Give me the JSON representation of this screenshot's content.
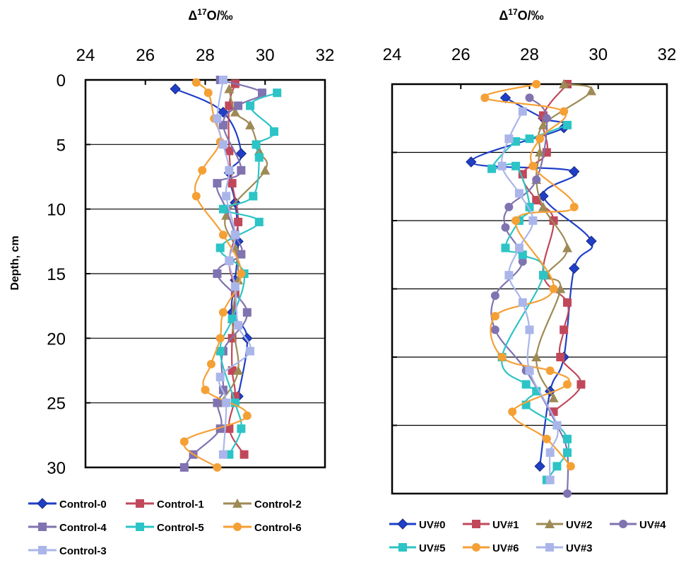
{
  "chart_data": [
    {
      "type": "line",
      "title": "Δ17O/‰",
      "title_sup": "17",
      "xlabel": "Δ17O/‰",
      "ylabel": "Depth, cm",
      "xlim": [
        24,
        32
      ],
      "ylim": [
        0,
        30
      ],
      "xticks": [
        "24",
        "26",
        "28",
        "30",
        "32"
      ],
      "yticks": [
        "0",
        "5",
        "10",
        "15",
        "20",
        "25",
        "30"
      ],
      "ytick_values": [
        0,
        5,
        10,
        15,
        20,
        25,
        30
      ],
      "gridlines_y": [
        5,
        10,
        15,
        20,
        25
      ],
      "legend_position": "bottom",
      "series": [
        {
          "name": "Control-0",
          "color": "#1f3fc8",
          "marker": "diamond",
          "x": [
            27.0,
            28.6,
            29.2,
            28.8,
            29.0,
            29.1,
            29.0,
            28.9,
            29.4,
            29.1
          ],
          "y": [
            0.7,
            2.5,
            5.7,
            7.2,
            9.5,
            12.5,
            15.5,
            18.0,
            20.0,
            24.5
          ]
        },
        {
          "name": "Control-1",
          "color": "#c0485a",
          "marker": "square",
          "x": [
            29.0,
            28.8,
            28.8,
            28.9,
            29.1,
            28.8,
            29.0,
            28.9,
            28.9,
            29.0,
            28.8,
            29.3
          ],
          "y": [
            0.3,
            2.0,
            5.5,
            8.0,
            11.0,
            14.0,
            16.5,
            20.0,
            22.5,
            24.5,
            27.0,
            29.0
          ]
        },
        {
          "name": "Control-2",
          "color": "#9e8a55",
          "marker": "triangle",
          "x": [
            28.8,
            29.0,
            29.5,
            29.8,
            30.0,
            28.7,
            29.0,
            29.1,
            28.9,
            29.1,
            28.5
          ],
          "y": [
            0.7,
            2.5,
            3.5,
            5.5,
            7.0,
            10.5,
            13.0,
            15.5,
            18.5,
            22.5,
            25.0
          ]
        },
        {
          "name": "Control-4",
          "color": "#8073b0",
          "marker": "square",
          "x": [
            28.5,
            29.9,
            29.1,
            28.6,
            29.2,
            28.4,
            28.7,
            29.0,
            29.2,
            28.4,
            29.4,
            28.6,
            28.6,
            28.4,
            28.5,
            27.6,
            27.3
          ],
          "y": [
            0.0,
            1.0,
            2.0,
            3.5,
            7.0,
            8.0,
            10.0,
            12.0,
            13.5,
            15.0,
            18.0,
            21.0,
            24.0,
            25.0,
            27.0,
            29.0,
            30.0
          ]
        },
        {
          "name": "Control-5",
          "color": "#2cc4c6",
          "marker": "square",
          "x": [
            30.4,
            29.5,
            30.3,
            29.7,
            29.8,
            29.6,
            28.6,
            29.8,
            28.5,
            29.3,
            28.9,
            28.5,
            29.0,
            29.2,
            28.8
          ],
          "y": [
            1.0,
            2.0,
            4.0,
            5.0,
            6.0,
            9.0,
            10.0,
            11.0,
            13.0,
            15.0,
            18.5,
            21.0,
            25.0,
            27.0,
            29.0
          ]
        },
        {
          "name": "Control-6",
          "color": "#f5a035",
          "marker": "circle",
          "x": [
            27.7,
            28.1,
            28.3,
            28.5,
            27.9,
            27.7,
            28.6,
            29.2,
            28.6,
            28.5,
            28.2,
            28.0,
            29.4,
            27.3,
            28.4
          ],
          "y": [
            0.2,
            1.0,
            3.0,
            4.8,
            7.0,
            9.0,
            12.0,
            15.0,
            18.0,
            20.0,
            22.0,
            24.0,
            26.0,
            28.0,
            30.0
          ]
        },
        {
          "name": "Control-3",
          "color": "#aab6ea",
          "marker": "square",
          "x": [
            28.6,
            28.4,
            28.6,
            28.8,
            28.7,
            29.0,
            28.8,
            29.0,
            29.1,
            29.5,
            28.5,
            28.7,
            28.6
          ],
          "y": [
            0.0,
            3.0,
            5.0,
            7.0,
            9.0,
            12.0,
            14.0,
            16.0,
            19.0,
            21.0,
            23.0,
            25.0,
            29.0
          ]
        }
      ]
    },
    {
      "type": "line",
      "title": "Δ17O/‰",
      "title_sup": "17",
      "xlabel": "Δ17O/‰",
      "ylabel": "",
      "xlim": [
        24,
        32
      ],
      "ylim": [
        0,
        30
      ],
      "xticks": [
        "24",
        "26",
        "28",
        "30",
        "32"
      ],
      "gridlines_y": [
        5,
        10,
        15,
        20,
        25
      ],
      "legend_position": "bottom",
      "series": [
        {
          "name": "UV#0",
          "color": "#1f3fc8",
          "marker": "diamond",
          "x": [
            27.3,
            28.4,
            29.0,
            26.3,
            29.3,
            28.4,
            29.8,
            29.3,
            29.0,
            28.6,
            28.3
          ],
          "y": [
            1.0,
            2.5,
            3.2,
            5.7,
            6.4,
            8.2,
            11.5,
            13.5,
            20.0,
            22.5,
            28.0
          ]
        },
        {
          "name": "UV#1",
          "color": "#c0485a",
          "marker": "square",
          "x": [
            29.1,
            28.4,
            28.5,
            27.8,
            28.2,
            28.7,
            28.4,
            29.1,
            29.0,
            28.9,
            29.5,
            28.7
          ],
          "y": [
            0.0,
            2.3,
            5.0,
            6.6,
            8.5,
            10.0,
            14.0,
            16.0,
            18.0,
            20.0,
            22.0,
            24.0
          ]
        },
        {
          "name": "UV#2",
          "color": "#9e8a55",
          "marker": "triangle",
          "x": [
            29.0,
            29.8,
            28.4,
            28.3,
            28.2,
            28.4,
            29.1,
            28.5,
            28.9,
            28.2,
            28.7
          ],
          "y": [
            0.0,
            0.5,
            3.0,
            5.0,
            7.0,
            9.0,
            12.0,
            14.0,
            15.0,
            20.0,
            23.0
          ]
        },
        {
          "name": "UV#4",
          "color": "#8073b0",
          "marker": "circle",
          "x": [
            28.0,
            28.5,
            28.2,
            27.4,
            27.3,
            27.8,
            27.0,
            27.0,
            27.9,
            28.8,
            29.1,
            29.1
          ],
          "y": [
            1.0,
            2.5,
            7.0,
            9.0,
            10.5,
            13.0,
            15.5,
            18.0,
            21.0,
            25.0,
            27.0,
            30.0
          ]
        },
        {
          "name": "UV#5",
          "color": "#2cc4c6",
          "marker": "square",
          "x": [
            29.1,
            28.0,
            27.6,
            26.9,
            27.6,
            28.0,
            27.7,
            27.3,
            27.8,
            28.4,
            27.2,
            27.9,
            28.2,
            27.9,
            28.8,
            29.1,
            29.1,
            28.8,
            28.5
          ],
          "y": [
            3.0,
            4.0,
            4.2,
            6.2,
            6.0,
            9.0,
            10.0,
            12.0,
            12.5,
            14.0,
            20.0,
            22.0,
            22.5,
            23.5,
            25.0,
            26.0,
            27.0,
            28.0,
            29.0
          ]
        },
        {
          "name": "UV#6",
          "color": "#f5a035",
          "marker": "circle",
          "x": [
            28.2,
            26.7,
            29.0,
            28.3,
            28.1,
            29.3,
            27.6,
            28.7,
            27.0,
            27.2,
            28.6,
            29.1,
            27.5,
            28.5,
            29.2
          ],
          "y": [
            0.0,
            1.0,
            2.0,
            4.0,
            6.0,
            9.0,
            10.0,
            15.0,
            17.0,
            20.0,
            21.0,
            22.0,
            24.0,
            26.0,
            28.0
          ]
        },
        {
          "name": "UV#3",
          "color": "#aab6ea",
          "marker": "square",
          "x": [
            27.8,
            27.4,
            27.2,
            27.7,
            28.1,
            27.7,
            27.4,
            27.8,
            28.0,
            28.0,
            28.8,
            28.6,
            28.6
          ],
          "y": [
            2.0,
            4.0,
            6.0,
            8.0,
            10.0,
            12.0,
            14.0,
            16.0,
            18.0,
            21.0,
            25.0,
            27.0,
            29.0
          ]
        }
      ]
    }
  ]
}
